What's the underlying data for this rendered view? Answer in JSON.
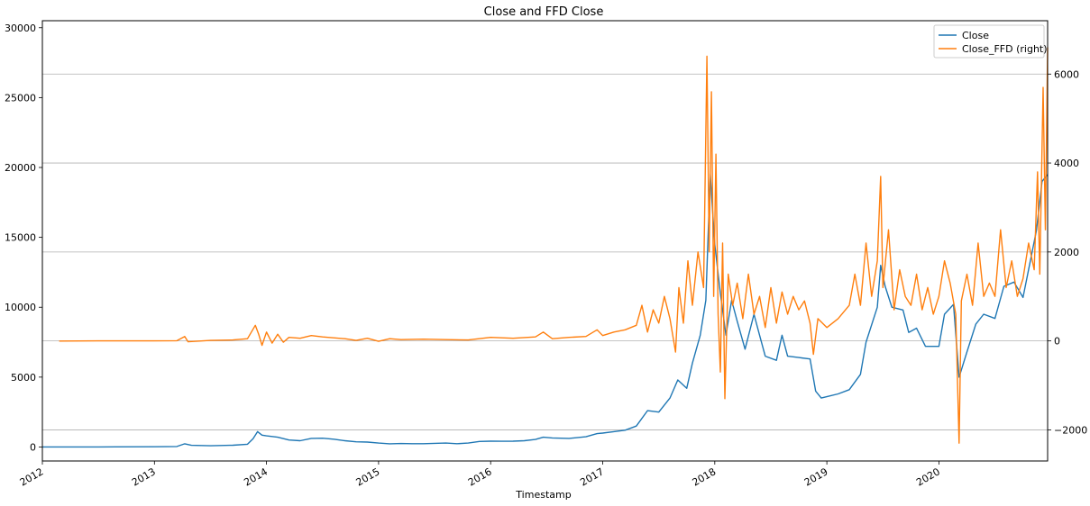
{
  "chart_data": {
    "type": "line",
    "title": "Close and FFD Close",
    "xlabel": "Timestamp",
    "ylabel": "",
    "ylabel_right": "",
    "x_ticks": [
      "2012",
      "2013",
      "2014",
      "2015",
      "2016",
      "2017",
      "2018",
      "2019",
      "2020"
    ],
    "xlim": [
      2012.0,
      2020.97
    ],
    "ylim": [
      -1000,
      30500
    ],
    "y_ticks": [
      0,
      5000,
      10000,
      15000,
      20000,
      25000,
      30000
    ],
    "ylim_right": [
      -2700,
      7200
    ],
    "y_ticks_right": [
      -2000,
      0,
      2000,
      4000,
      6000
    ],
    "grid": "horizontal lines at right-axis ticks",
    "legend_position": "top-right",
    "legend": [
      "Close",
      "Close_FFD (right)"
    ],
    "series": [
      {
        "name": "Close",
        "axis": "left",
        "color": "#1f77b4",
        "points": [
          [
            2012.0,
            5
          ],
          [
            2012.5,
            7
          ],
          [
            2013.0,
            15
          ],
          [
            2013.2,
            40
          ],
          [
            2013.27,
            230
          ],
          [
            2013.33,
            120
          ],
          [
            2013.5,
            90
          ],
          [
            2013.7,
            130
          ],
          [
            2013.83,
            200
          ],
          [
            2013.88,
            600
          ],
          [
            2013.92,
            1100
          ],
          [
            2013.96,
            850
          ],
          [
            2014.0,
            800
          ],
          [
            2014.1,
            700
          ],
          [
            2014.2,
            500
          ],
          [
            2014.3,
            450
          ],
          [
            2014.4,
            620
          ],
          [
            2014.5,
            630
          ],
          [
            2014.6,
            560
          ],
          [
            2014.7,
            450
          ],
          [
            2014.8,
            370
          ],
          [
            2014.9,
            350
          ],
          [
            2015.0,
            280
          ],
          [
            2015.1,
            230
          ],
          [
            2015.2,
            250
          ],
          [
            2015.3,
            240
          ],
          [
            2015.4,
            240
          ],
          [
            2015.5,
            260
          ],
          [
            2015.6,
            280
          ],
          [
            2015.7,
            240
          ],
          [
            2015.8,
            280
          ],
          [
            2015.9,
            400
          ],
          [
            2016.0,
            420
          ],
          [
            2016.1,
            410
          ],
          [
            2016.2,
            420
          ],
          [
            2016.3,
            450
          ],
          [
            2016.4,
            540
          ],
          [
            2016.47,
            700
          ],
          [
            2016.55,
            650
          ],
          [
            2016.7,
            620
          ],
          [
            2016.85,
            730
          ],
          [
            2016.95,
            960
          ],
          [
            2017.0,
            1000
          ],
          [
            2017.1,
            1100
          ],
          [
            2017.2,
            1200
          ],
          [
            2017.3,
            1500
          ],
          [
            2017.4,
            2600
          ],
          [
            2017.5,
            2500
          ],
          [
            2017.6,
            3500
          ],
          [
            2017.67,
            4800
          ],
          [
            2017.75,
            4200
          ],
          [
            2017.8,
            6000
          ],
          [
            2017.87,
            8000
          ],
          [
            2017.92,
            10500
          ],
          [
            2017.96,
            19500
          ],
          [
            2018.0,
            14500
          ],
          [
            2018.05,
            11000
          ],
          [
            2018.1,
            8000
          ],
          [
            2018.15,
            10500
          ],
          [
            2018.2,
            9000
          ],
          [
            2018.27,
            7000
          ],
          [
            2018.35,
            9500
          ],
          [
            2018.4,
            8000
          ],
          [
            2018.45,
            6500
          ],
          [
            2018.55,
            6200
          ],
          [
            2018.6,
            8000
          ],
          [
            2018.65,
            6500
          ],
          [
            2018.75,
            6400
          ],
          [
            2018.85,
            6300
          ],
          [
            2018.9,
            4000
          ],
          [
            2018.95,
            3500
          ],
          [
            2019.0,
            3600
          ],
          [
            2019.1,
            3800
          ],
          [
            2019.2,
            4100
          ],
          [
            2019.3,
            5200
          ],
          [
            2019.35,
            7500
          ],
          [
            2019.45,
            10000
          ],
          [
            2019.48,
            13000
          ],
          [
            2019.52,
            11500
          ],
          [
            2019.58,
            10000
          ],
          [
            2019.68,
            9800
          ],
          [
            2019.73,
            8200
          ],
          [
            2019.8,
            8500
          ],
          [
            2019.88,
            7200
          ],
          [
            2020.0,
            7200
          ],
          [
            2020.05,
            9500
          ],
          [
            2020.13,
            10200
          ],
          [
            2020.18,
            5000
          ],
          [
            2020.25,
            6800
          ],
          [
            2020.33,
            8800
          ],
          [
            2020.4,
            9500
          ],
          [
            2020.5,
            9200
          ],
          [
            2020.58,
            11500
          ],
          [
            2020.67,
            11800
          ],
          [
            2020.75,
            10700
          ],
          [
            2020.82,
            13500
          ],
          [
            2020.87,
            15500
          ],
          [
            2020.92,
            19000
          ],
          [
            2020.97,
            19500
          ]
        ]
      },
      {
        "name": "Close_FFD (right)",
        "axis": "right",
        "color": "#ff7f0e",
        "points": [
          [
            2012.15,
            -3
          ],
          [
            2012.5,
            0
          ],
          [
            2013.0,
            0
          ],
          [
            2013.2,
            5
          ],
          [
            2013.27,
            100
          ],
          [
            2013.3,
            -20
          ],
          [
            2013.5,
            10
          ],
          [
            2013.7,
            20
          ],
          [
            2013.83,
            50
          ],
          [
            2013.9,
            350
          ],
          [
            2013.93,
            150
          ],
          [
            2013.96,
            -100
          ],
          [
            2014.0,
            200
          ],
          [
            2014.05,
            -50
          ],
          [
            2014.1,
            150
          ],
          [
            2014.15,
            -30
          ],
          [
            2014.2,
            80
          ],
          [
            2014.3,
            60
          ],
          [
            2014.4,
            120
          ],
          [
            2014.5,
            90
          ],
          [
            2014.7,
            50
          ],
          [
            2014.8,
            10
          ],
          [
            2014.9,
            60
          ],
          [
            2015.0,
            -10
          ],
          [
            2015.1,
            50
          ],
          [
            2015.2,
            30
          ],
          [
            2015.4,
            40
          ],
          [
            2015.6,
            30
          ],
          [
            2015.8,
            20
          ],
          [
            2016.0,
            80
          ],
          [
            2016.2,
            60
          ],
          [
            2016.4,
            90
          ],
          [
            2016.47,
            200
          ],
          [
            2016.55,
            50
          ],
          [
            2016.7,
            80
          ],
          [
            2016.85,
            100
          ],
          [
            2016.95,
            250
          ],
          [
            2017.0,
            120
          ],
          [
            2017.1,
            200
          ],
          [
            2017.2,
            250
          ],
          [
            2017.3,
            350
          ],
          [
            2017.35,
            800
          ],
          [
            2017.4,
            200
          ],
          [
            2017.45,
            700
          ],
          [
            2017.5,
            400
          ],
          [
            2017.55,
            1000
          ],
          [
            2017.6,
            500
          ],
          [
            2017.65,
            -250
          ],
          [
            2017.68,
            1200
          ],
          [
            2017.72,
            400
          ],
          [
            2017.76,
            1800
          ],
          [
            2017.8,
            800
          ],
          [
            2017.85,
            2000
          ],
          [
            2017.9,
            1200
          ],
          [
            2017.93,
            6400
          ],
          [
            2017.95,
            2000
          ],
          [
            2017.97,
            5600
          ],
          [
            2017.99,
            1000
          ],
          [
            2018.01,
            4200
          ],
          [
            2018.03,
            600
          ],
          [
            2018.05,
            -700
          ],
          [
            2018.07,
            2200
          ],
          [
            2018.09,
            -1300
          ],
          [
            2018.12,
            1500
          ],
          [
            2018.16,
            800
          ],
          [
            2018.2,
            1300
          ],
          [
            2018.25,
            500
          ],
          [
            2018.3,
            1500
          ],
          [
            2018.35,
            600
          ],
          [
            2018.4,
            1000
          ],
          [
            2018.45,
            300
          ],
          [
            2018.5,
            1200
          ],
          [
            2018.55,
            400
          ],
          [
            2018.6,
            1100
          ],
          [
            2018.65,
            600
          ],
          [
            2018.7,
            1000
          ],
          [
            2018.75,
            700
          ],
          [
            2018.8,
            900
          ],
          [
            2018.85,
            400
          ],
          [
            2018.88,
            -300
          ],
          [
            2018.92,
            500
          ],
          [
            2019.0,
            300
          ],
          [
            2019.1,
            500
          ],
          [
            2019.2,
            800
          ],
          [
            2019.25,
            1500
          ],
          [
            2019.3,
            800
          ],
          [
            2019.35,
            2200
          ],
          [
            2019.4,
            1000
          ],
          [
            2019.45,
            1800
          ],
          [
            2019.48,
            3700
          ],
          [
            2019.5,
            1200
          ],
          [
            2019.55,
            2500
          ],
          [
            2019.6,
            700
          ],
          [
            2019.65,
            1600
          ],
          [
            2019.7,
            1000
          ],
          [
            2019.75,
            800
          ],
          [
            2019.8,
            1500
          ],
          [
            2019.85,
            700
          ],
          [
            2019.9,
            1200
          ],
          [
            2019.95,
            600
          ],
          [
            2020.0,
            1000
          ],
          [
            2020.05,
            1800
          ],
          [
            2020.1,
            1300
          ],
          [
            2020.15,
            600
          ],
          [
            2020.18,
            -2300
          ],
          [
            2020.2,
            900
          ],
          [
            2020.25,
            1500
          ],
          [
            2020.3,
            800
          ],
          [
            2020.35,
            2200
          ],
          [
            2020.4,
            1000
          ],
          [
            2020.45,
            1300
          ],
          [
            2020.5,
            1000
          ],
          [
            2020.55,
            2500
          ],
          [
            2020.6,
            1200
          ],
          [
            2020.65,
            1800
          ],
          [
            2020.7,
            1000
          ],
          [
            2020.75,
            1400
          ],
          [
            2020.8,
            2200
          ],
          [
            2020.85,
            1600
          ],
          [
            2020.88,
            3800
          ],
          [
            2020.9,
            1500
          ],
          [
            2020.93,
            5700
          ],
          [
            2020.95,
            2500
          ],
          [
            2020.97,
            6600
          ]
        ]
      }
    ]
  }
}
